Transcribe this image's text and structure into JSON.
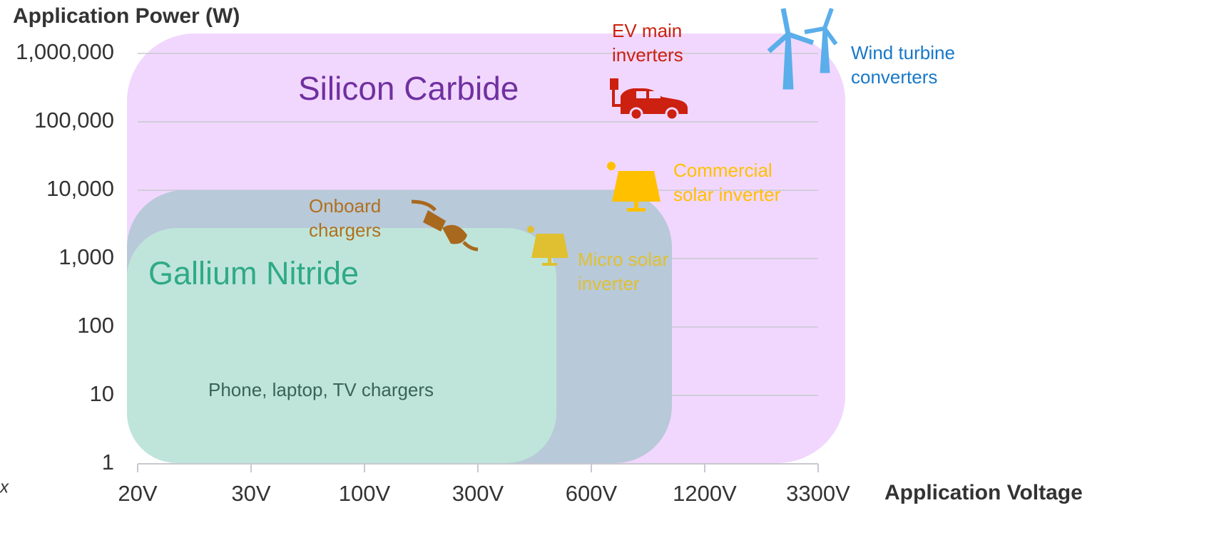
{
  "axes": {
    "y_title": "Application Power (W)",
    "x_title": "Application Voltage",
    "y_ticks": [
      "1,000,000",
      "100,000",
      "10,000",
      "1,000",
      "100",
      "10",
      "1"
    ],
    "x_ticks": [
      "20V",
      "30V",
      "100V",
      "300V",
      "600V",
      "1200V",
      "3300V"
    ],
    "stray": "x"
  },
  "regions": {
    "silicon_carbide": "Silicon Carbide",
    "gallium_nitride": "Gallium Nitride"
  },
  "applications": {
    "phone": [
      "Phone, laptop, TV chargers"
    ],
    "onboard": [
      "Onboard",
      "chargers"
    ],
    "micro_solar": [
      "Micro solar",
      "inverter"
    ],
    "commercial_solar": [
      "Commercial",
      "solar inverter"
    ],
    "ev": [
      "EV main",
      "inverters"
    ],
    "wind": [
      "Wind turbine",
      "converters"
    ]
  }
}
